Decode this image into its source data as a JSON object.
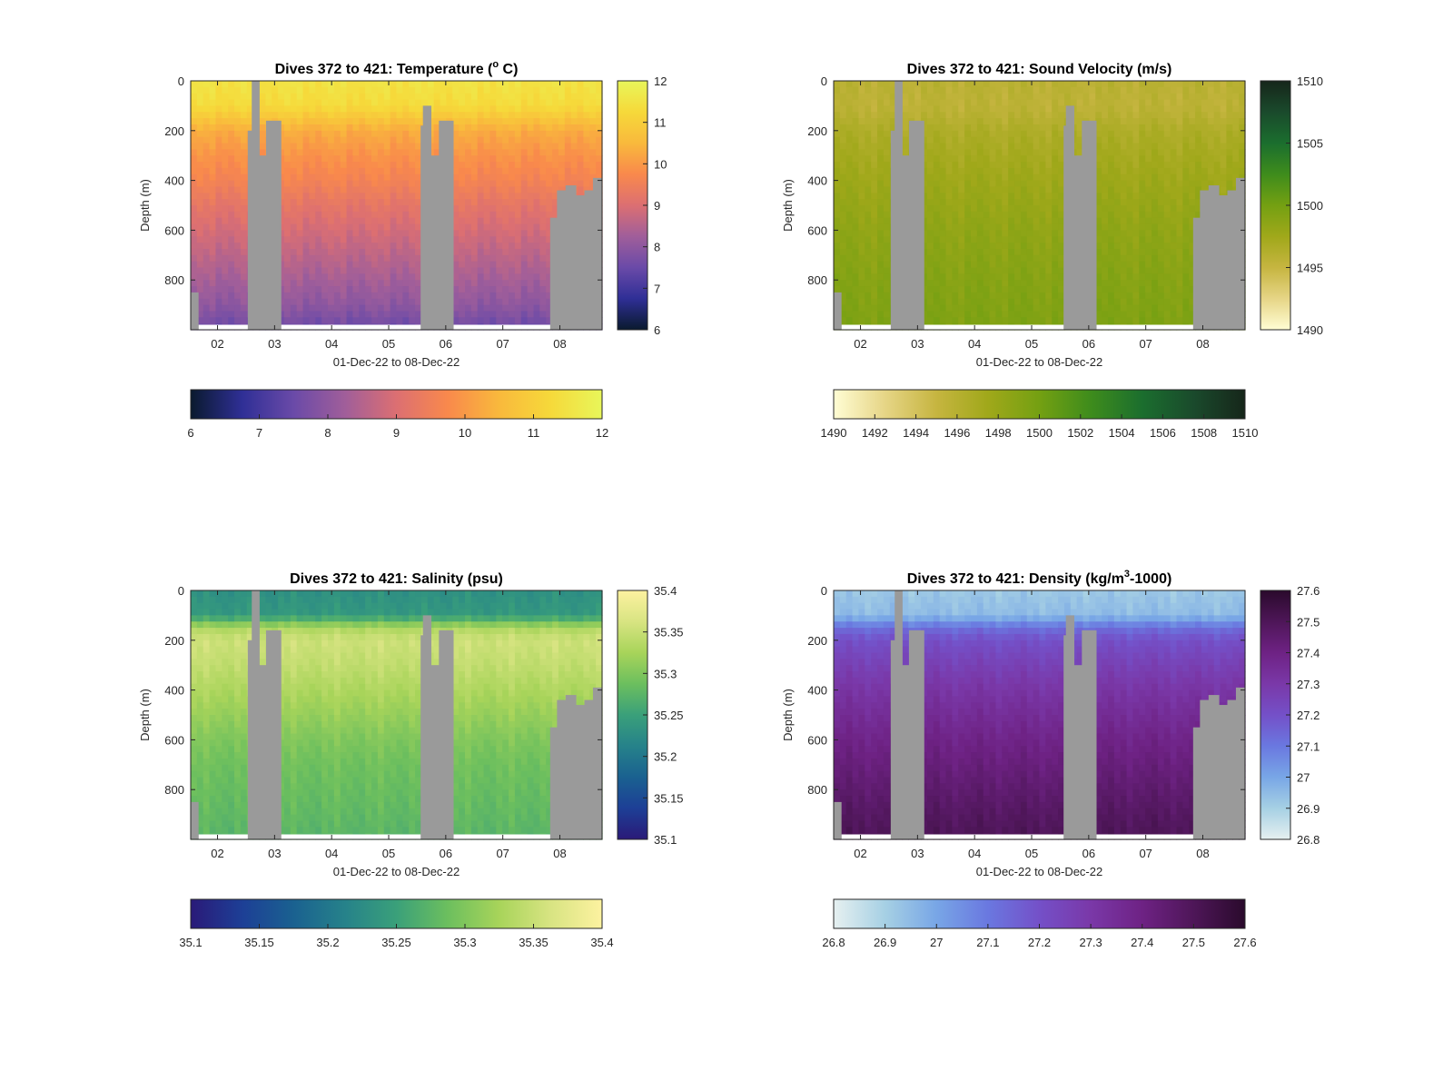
{
  "figure": {
    "background": "#ffffff",
    "gap_color": "#9a9a9a"
  },
  "chart_data": [
    {
      "type": "heatmap",
      "title_pre": "Dives 372 to 421: Temperature (",
      "title_sup": "o",
      "title_post": " C)",
      "xlabel": "01-Dec-22 to 08-Dec-22",
      "ylabel": "Depth (m)",
      "x_ticks": [
        "02",
        "03",
        "04",
        "05",
        "06",
        "07",
        "08"
      ],
      "y_ticks": [
        "0",
        "200",
        "400",
        "600",
        "800"
      ],
      "ylim": [
        0,
        1000
      ],
      "y_reversed": true,
      "clim": [
        6,
        12
      ],
      "colormap": "thermal",
      "colormap_stops": [
        "#0a1a2e",
        "#2f2f96",
        "#6a4aa8",
        "#a05e9a",
        "#dc6f72",
        "#f9894c",
        "#f9b93c",
        "#f6d93a",
        "#e8f65a"
      ],
      "colorbar_ticks": [
        "6",
        "7",
        "8",
        "9",
        "10",
        "11",
        "12"
      ],
      "horizontal_colorbar_ticks": [
        "6",
        "7",
        "8",
        "9",
        "10",
        "11",
        "12"
      ],
      "profile_values": {
        "depths": [
          0,
          100,
          150,
          200,
          300,
          400,
          500,
          600,
          700,
          800,
          900,
          980
        ],
        "values": [
          11.5,
          11.3,
          10.8,
          10.3,
          9.9,
          9.6,
          9.2,
          8.9,
          8.6,
          8.3,
          8.0,
          7.6
        ]
      }
    },
    {
      "type": "heatmap",
      "title_pre": "Dives 372 to 421: Sound Velocity (m/s)",
      "title_sup": "",
      "title_post": "",
      "xlabel": "01-Dec-22 to 08-Dec-22",
      "ylabel": "Depth (m)",
      "x_ticks": [
        "02",
        "03",
        "04",
        "05",
        "06",
        "07",
        "08"
      ],
      "y_ticks": [
        "0",
        "200",
        "400",
        "600",
        "800"
      ],
      "ylim": [
        0,
        1000
      ],
      "y_reversed": true,
      "clim": [
        1490,
        1510
      ],
      "colormap": "speed",
      "colormap_stops": [
        "#fffdd4",
        "#e6d586",
        "#c6b540",
        "#a0a81a",
        "#74a012",
        "#3e8c1c",
        "#1b6e2e",
        "#1a4a2c",
        "#16261a"
      ],
      "colorbar_ticks": [
        "1490",
        "1495",
        "1500",
        "1505",
        "1510"
      ],
      "horizontal_colorbar_ticks": [
        "1490",
        "1492",
        "1494",
        "1496",
        "1498",
        "1500",
        "1502",
        "1504",
        "1506",
        "1508",
        "1510"
      ],
      "profile_values": {
        "depths": [
          0,
          100,
          150,
          200,
          300,
          400,
          500,
          600,
          700,
          800,
          900,
          980
        ],
        "values": [
          1495.8,
          1495.6,
          1496.0,
          1496.6,
          1497.1,
          1497.6,
          1498.0,
          1498.4,
          1498.7,
          1499.0,
          1499.2,
          1499.4
        ]
      }
    },
    {
      "type": "heatmap",
      "title_pre": "Dives 372 to 421: Salinity (psu)",
      "title_sup": "",
      "title_post": "",
      "xlabel": "01-Dec-22 to 08-Dec-22",
      "ylabel": "Depth (m)",
      "x_ticks": [
        "02",
        "03",
        "04",
        "05",
        "06",
        "07",
        "08"
      ],
      "y_ticks": [
        "0",
        "200",
        "400",
        "600",
        "800"
      ],
      "ylim": [
        0,
        1000
      ],
      "y_reversed": true,
      "clim": [
        35.1,
        35.4
      ],
      "colormap": "haline",
      "colormap_stops": [
        "#2a1a78",
        "#1d3f96",
        "#1a6190",
        "#26828a",
        "#3aa07a",
        "#6cbf5e",
        "#a8d45a",
        "#d8e482",
        "#fdf2a0"
      ],
      "colorbar_ticks": [
        "35.1",
        "35.15",
        "35.2",
        "35.25",
        "35.3",
        "35.35",
        "35.4"
      ],
      "horizontal_colorbar_ticks": [
        "35.1",
        "35.15",
        "35.2",
        "35.25",
        "35.3",
        "35.35",
        "35.4"
      ],
      "profile_values": {
        "depths": [
          0,
          100,
          150,
          200,
          300,
          400,
          500,
          600,
          700,
          800,
          900,
          980
        ],
        "values": [
          35.23,
          35.24,
          35.33,
          35.355,
          35.345,
          35.33,
          35.315,
          35.3,
          35.29,
          35.285,
          35.28,
          35.275
        ]
      }
    },
    {
      "type": "heatmap",
      "title_pre": "Dives 372 to 421: Density (kg/m",
      "title_sup": "3",
      "title_post": "-1000)",
      "xlabel": "01-Dec-22 to 08-Dec-22",
      "ylabel": "Depth (m)",
      "x_ticks": [
        "02",
        "03",
        "04",
        "05",
        "06",
        "07",
        "08"
      ],
      "y_ticks": [
        "0",
        "200",
        "400",
        "600",
        "800"
      ],
      "ylim": [
        0,
        1000
      ],
      "y_reversed": true,
      "clim": [
        26.8,
        27.6
      ],
      "colormap": "dense",
      "colormap_stops": [
        "#e6f0f0",
        "#a6d0e4",
        "#78a6e6",
        "#6a78e0",
        "#7450c8",
        "#7a38a8",
        "#6e2284",
        "#4e1658",
        "#2a0a2c"
      ],
      "colorbar_ticks": [
        "26.8",
        "26.9",
        "27",
        "27.1",
        "27.2",
        "27.3",
        "27.4",
        "27.5",
        "27.6"
      ],
      "horizontal_colorbar_ticks": [
        "26.8",
        "26.9",
        "27",
        "27.1",
        "27.2",
        "27.3",
        "27.4",
        "27.5",
        "27.6"
      ],
      "profile_values": {
        "depths": [
          0,
          100,
          150,
          200,
          300,
          400,
          500,
          600,
          700,
          800,
          900,
          980
        ],
        "values": [
          26.92,
          26.95,
          27.12,
          27.2,
          27.26,
          27.31,
          27.35,
          27.39,
          27.42,
          27.45,
          27.48,
          27.5
        ]
      }
    }
  ]
}
